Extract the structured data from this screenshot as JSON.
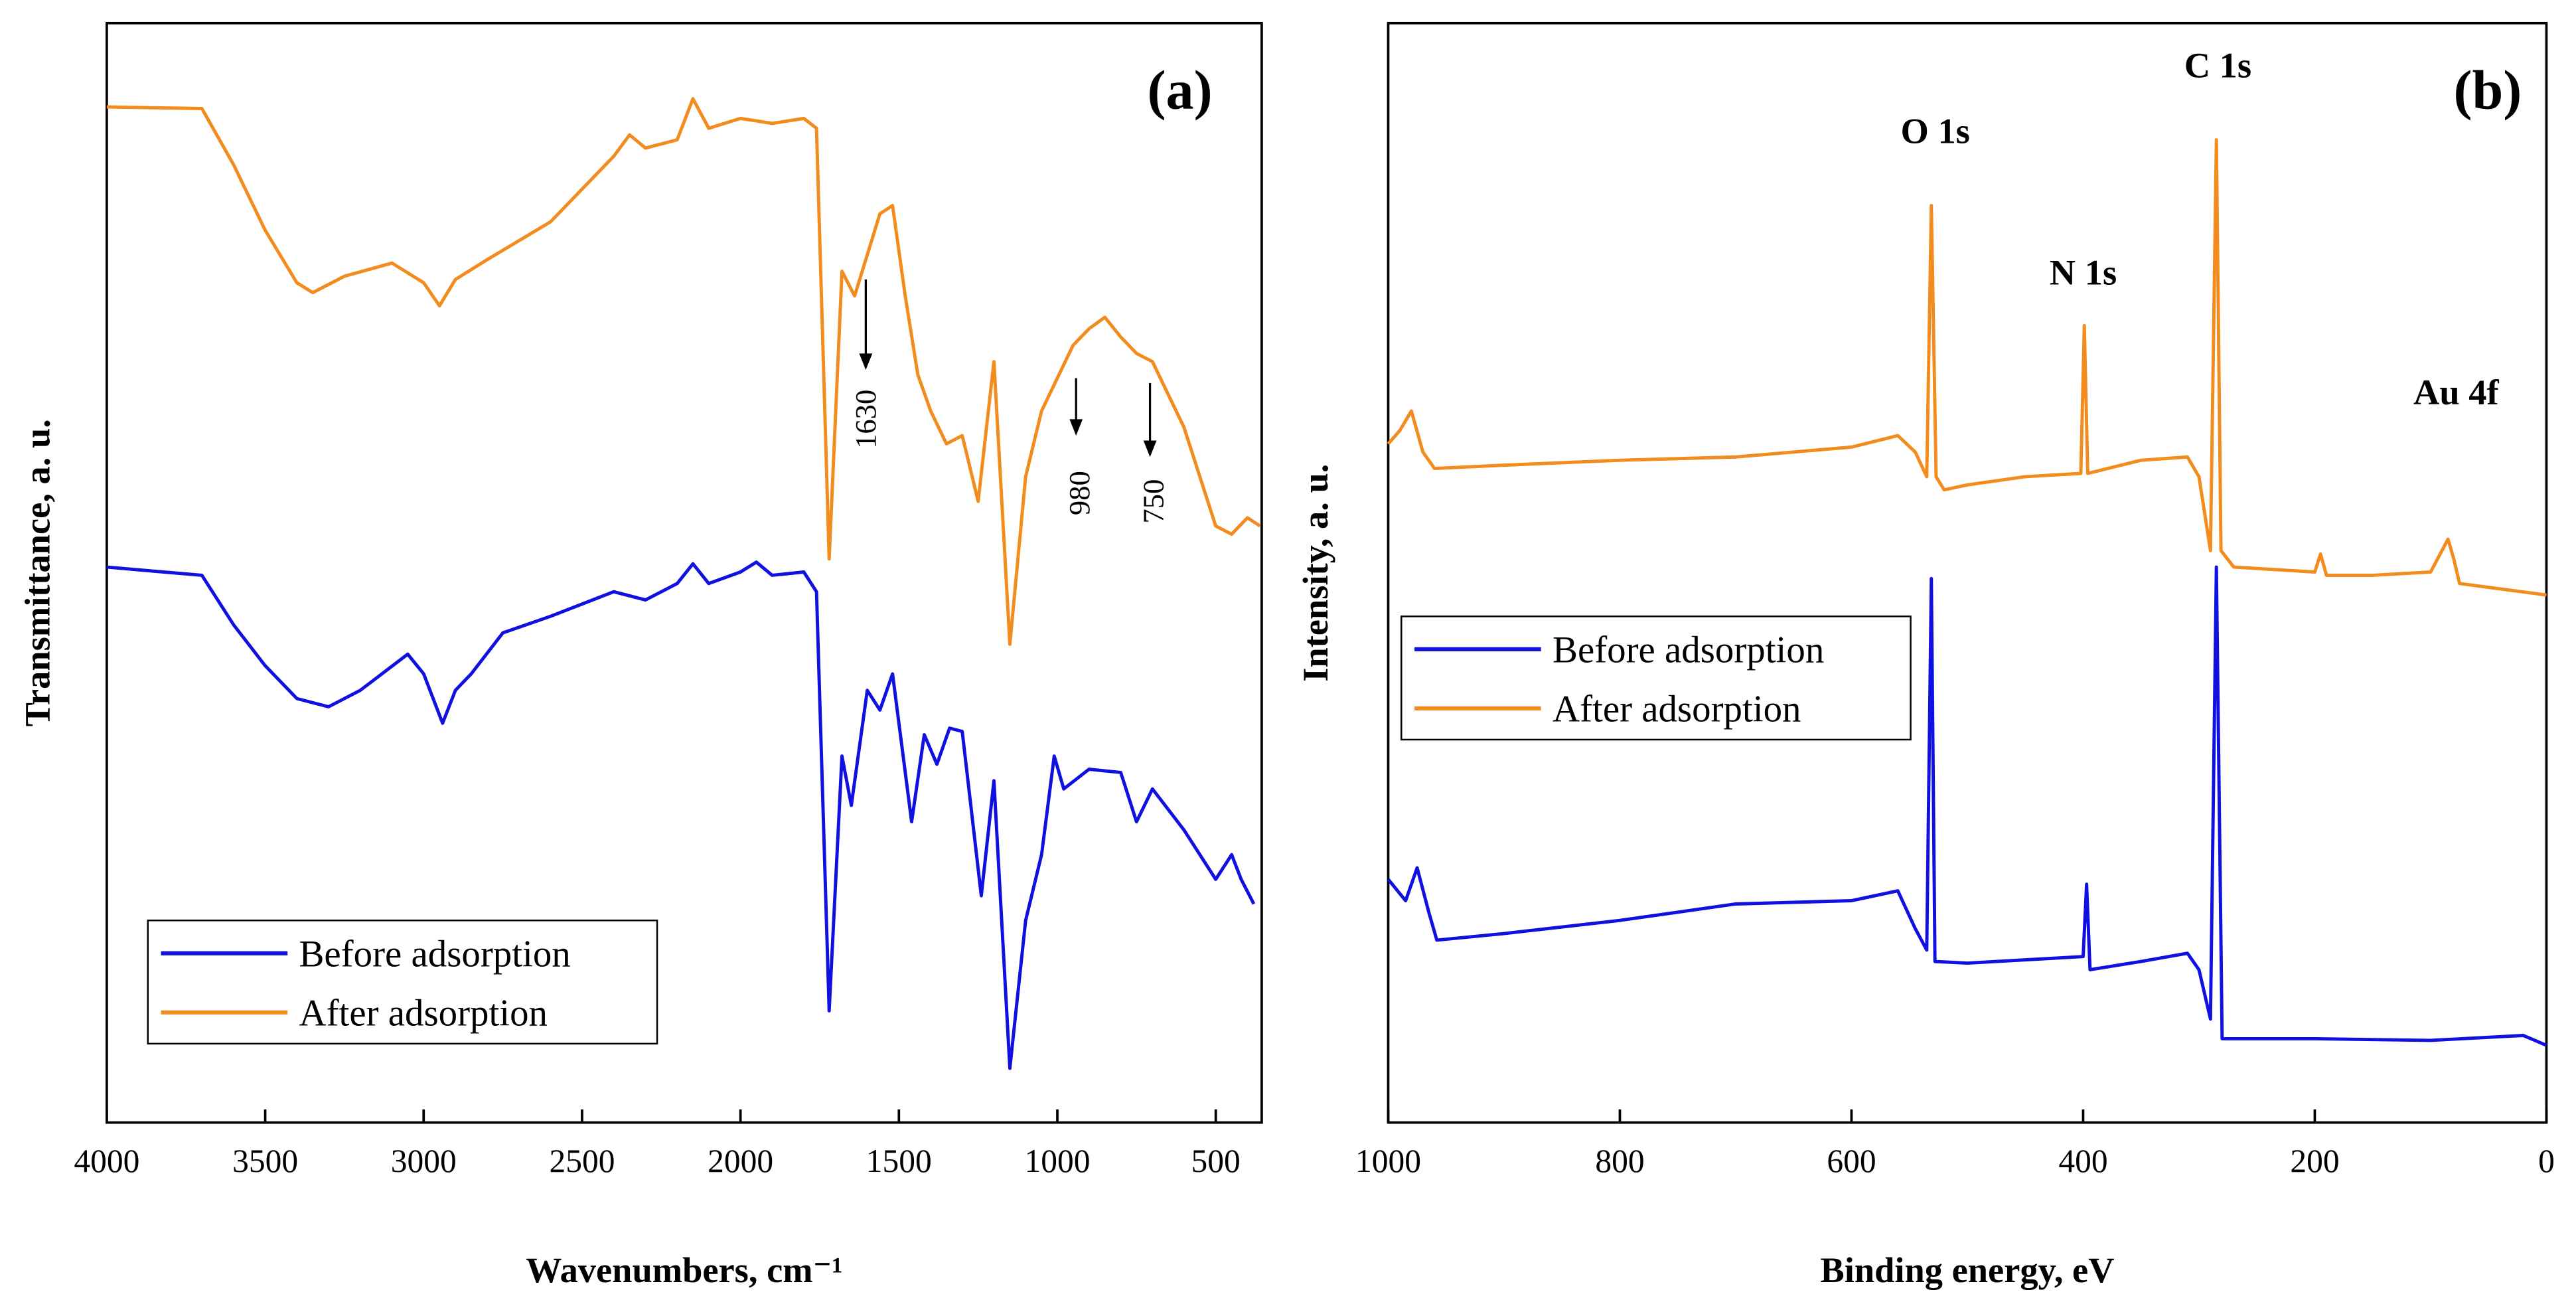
{
  "chart_data": [
    {
      "type": "line",
      "xlabel": "Wavenumbers, cm⁻¹",
      "ylabel": "Transmittance, a. u.",
      "xlim": [
        4000,
        355
      ],
      "ylim": [
        0,
        669
      ],
      "xticks": [
        4000,
        3500,
        3000,
        2500,
        2000,
        1500,
        1000,
        500
      ],
      "legend": "lower left",
      "annotations": [
        "(a)",
        "1630",
        "980",
        "750"
      ],
      "series": [
        {
          "name": "Before adsorption",
          "color": "#1010e0",
          "x": [
            4000,
            3700,
            3600,
            3500,
            3400,
            3300,
            3200,
            3050,
            3000,
            2940,
            2900,
            2850,
            2750,
            2600,
            2400,
            2300,
            2200,
            2150,
            2100,
            2000,
            1950,
            1900,
            1800,
            1760,
            1720,
            1680,
            1650,
            1600,
            1560,
            1520,
            1460,
            1420,
            1380,
            1340,
            1300,
            1240,
            1200,
            1150,
            1100,
            1050,
            1010,
            980,
            900,
            800,
            750,
            700,
            600,
            500,
            450,
            420,
            380
          ],
          "values": [
            338,
            333,
            303,
            278,
            258,
            253,
            263,
            285,
            273,
            243,
            263,
            273,
            298,
            308,
            323,
            318,
            328,
            340,
            328,
            335,
            341,
            333,
            335,
            323,
            68,
            223,
            193,
            263,
            251,
            273,
            183,
            236,
            218,
            240,
            238,
            138,
            208,
            33,
            123,
            163,
            223,
            203,
            215,
            213,
            183,
            203,
            178,
            148,
            163,
            148,
            133
          ]
        },
        {
          "name": "After adsorption",
          "color": "#f28c1e",
          "x": [
            4000,
            3700,
            3600,
            3500,
            3400,
            3350,
            3250,
            3100,
            3000,
            2950,
            2900,
            2800,
            2600,
            2400,
            2350,
            2300,
            2200,
            2150,
            2100,
            2000,
            1900,
            1800,
            1760,
            1720,
            1680,
            1640,
            1560,
            1520,
            1480,
            1440,
            1400,
            1350,
            1300,
            1250,
            1200,
            1150,
            1100,
            1050,
            1000,
            950,
            900,
            850,
            800,
            750,
            700,
            600,
            500,
            450,
            400,
            360
          ],
          "values": [
            618,
            617,
            583,
            543,
            511,
            505,
            515,
            523,
            511,
            497,
            513,
            525,
            548,
            588,
            601,
            593,
            598,
            623,
            605,
            611,
            608,
            611,
            605,
            343,
            518,
            503,
            553,
            558,
            503,
            455,
            433,
            413,
            418,
            378,
            463,
            291,
            393,
            433,
            453,
            473,
            483,
            490,
            478,
            468,
            463,
            423,
            363,
            358,
            368,
            363
          ]
        }
      ]
    },
    {
      "type": "line",
      "xlabel": "Binding energy, eV",
      "ylabel": "Intensity, a. u.",
      "xlim": [
        1000,
        0
      ],
      "ylim": [
        0,
        669
      ],
      "xticks": [
        1000,
        800,
        600,
        400,
        200,
        0
      ],
      "legend": "center left",
      "annotations": [
        "(b)",
        "O 1s",
        "N 1s",
        "C 1s",
        "Au 4f"
      ],
      "series": [
        {
          "name": "Before adsorption",
          "color": "#1010e0",
          "x": [
            1000,
            985,
            975,
            965,
            958,
            900,
            800,
            700,
            600,
            560,
            545,
            535,
            531,
            528,
            500,
            450,
            400,
            397,
            394,
            350,
            310,
            300,
            290,
            285,
            280,
            200,
            100,
            20,
            0
          ],
          "values": [
            148,
            135,
            155,
            128,
            111,
            115,
            123,
            133,
            135,
            141,
            118,
            105,
            331,
            98,
            97,
            99,
            101,
            145,
            93,
            98,
            103,
            93,
            63,
            338,
            51,
            51,
            50,
            53,
            47
          ]
        },
        {
          "name": "After adsorption",
          "color": "#f28c1e",
          "x": [
            1000,
            990,
            980,
            970,
            960,
            900,
            800,
            700,
            600,
            560,
            545,
            535,
            531,
            527,
            520,
            500,
            450,
            402,
            399,
            396,
            350,
            310,
            300,
            290,
            285,
            281,
            270,
            200,
            195,
            190,
            150,
            100,
            85,
            80,
            75,
            0
          ],
          "values": [
            413,
            421,
            433,
            408,
            398,
            400,
            403,
            405,
            411,
            418,
            408,
            393,
            558,
            393,
            385,
            388,
            393,
            395,
            485,
            395,
            403,
            405,
            393,
            348,
            598,
            348,
            338,
            335,
            346,
            333,
            333,
            335,
            355,
            343,
            328,
            321
          ]
        }
      ]
    }
  ]
}
